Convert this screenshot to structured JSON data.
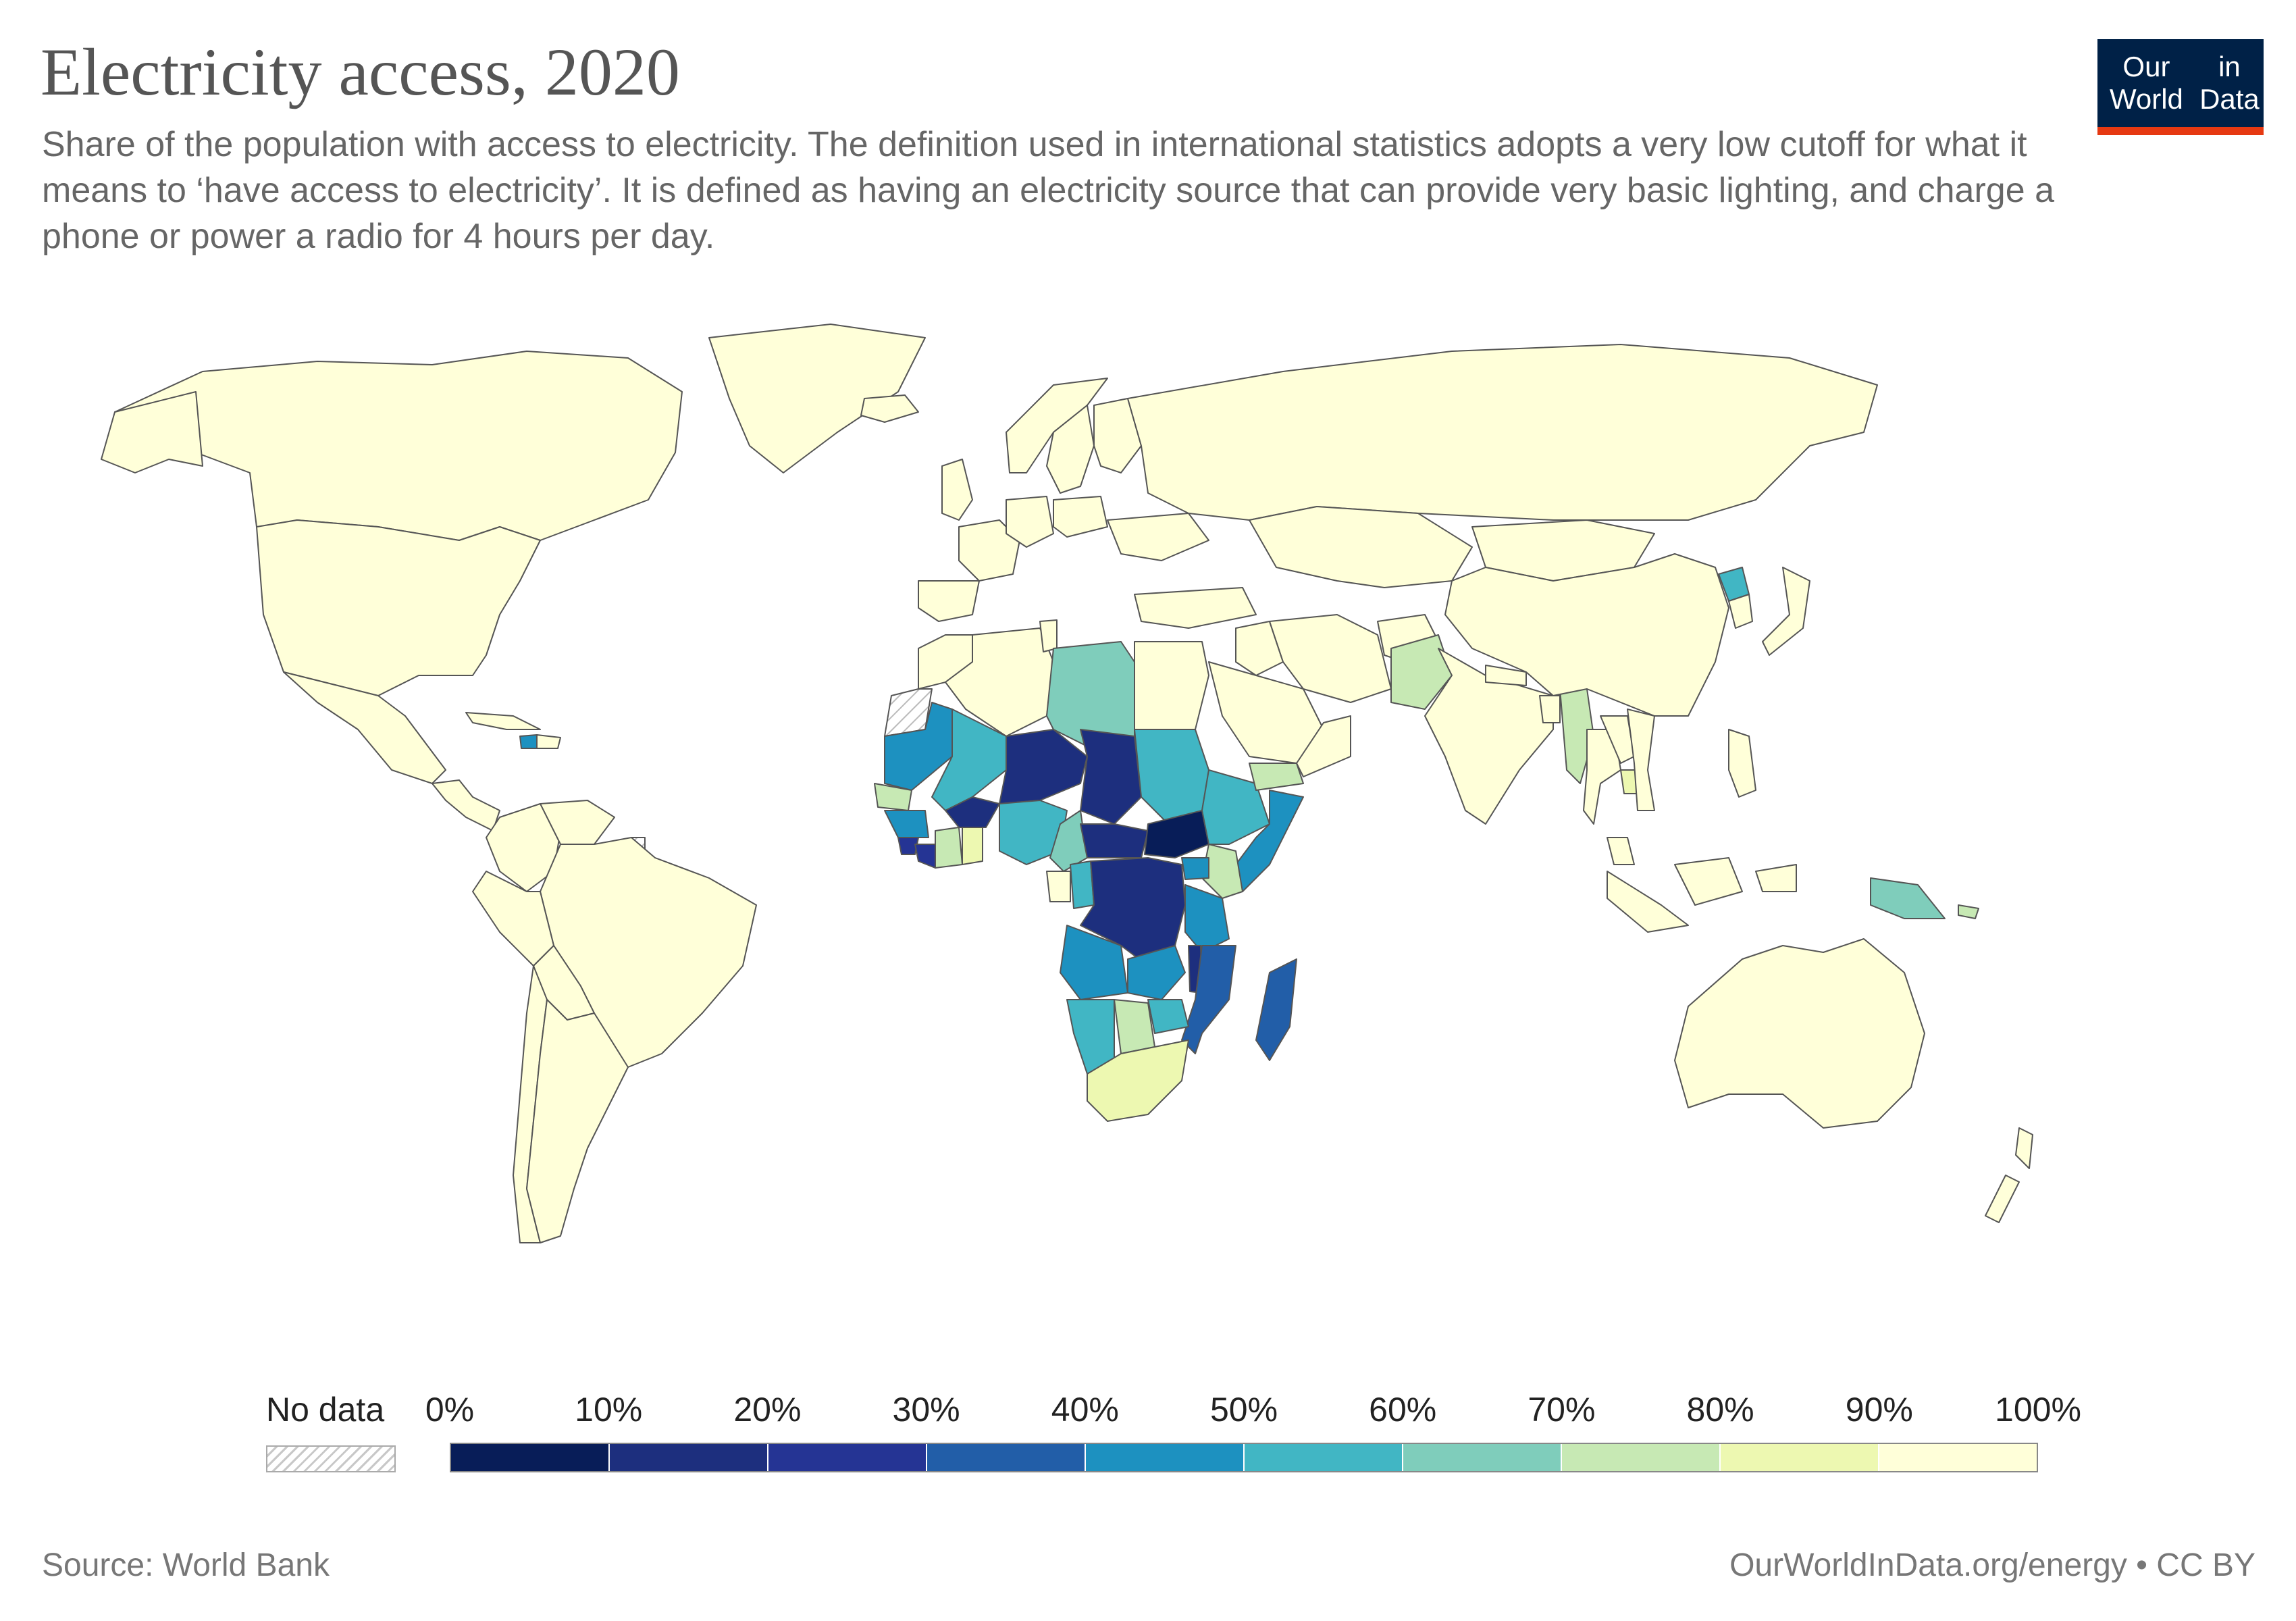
{
  "header": {
    "title": "Electricity access, 2020",
    "subtitle": "Share of the population with access to electricity. The definition used in international statistics adopts a very low cutoff for what it means to ‘have access to electricity’. It is defined as having an electricity source that can provide very basic lighting, and charge a phone or power a radio for 4 hours per day.",
    "logo_line1": "Our World",
    "logo_line2": "in Data"
  },
  "legend": {
    "no_data_label": "No data",
    "ticks": [
      "0%",
      "10%",
      "20%",
      "30%",
      "40%",
      "50%",
      "60%",
      "70%",
      "80%",
      "90%",
      "100%"
    ],
    "bins": [
      "#081d58",
      "#1d2f7e",
      "#253494",
      "#225ea8",
      "#1d91c0",
      "#41b6c4",
      "#7fcdbb",
      "#c7e9b4",
      "#edf8b1",
      "#ffffd9"
    ]
  },
  "footer": {
    "source": "Source: World Bank",
    "credit": "OurWorldInData.org/energy • CC BY"
  },
  "colors": {
    "title": "#555555",
    "text": "#666666",
    "logo_bg": "#002147",
    "logo_accent": "#e63912",
    "border": "#555555",
    "ocean": "#ffffff"
  },
  "map_data": {
    "year": 2020,
    "indicator": "Share of the population with access to electricity (%)",
    "countries": {
      "CAN": 100,
      "USA": 100,
      "MEX": 99,
      "GTM": 97,
      "HND": 94,
      "NIC": 88,
      "HTI": 45,
      "CUB": 100,
      "DOM": 100,
      "COL": 100,
      "VEN": 99,
      "BRA": 100,
      "PER": 96,
      "BOL": 98,
      "ARG": 100,
      "CHL": 100,
      "GRL": 100,
      "ISL": 100,
      "GBR": 100,
      "FRA": 100,
      "ESP": 100,
      "DEU": 100,
      "SWE": 100,
      "NOR": 100,
      "FIN": 100,
      "POL": 100,
      "UKR": 100,
      "RUS": 100,
      "MAR": 100,
      "DZA": 100,
      "TUN": 100,
      "LBY": 67,
      "EGY": 100,
      "MRT": 47,
      "MLI": 51,
      "SEN": 70,
      "GIN": 46,
      "SLE": 26,
      "LBR": 29,
      "CIV": 70,
      "GHA": 85,
      "BFA": 19,
      "NER": 19,
      "NGA": 59,
      "TCD": 11,
      "SDN": 55,
      "SSD": 7,
      "ETH": 54,
      "SOM": 49,
      "KEN": 71,
      "UGA": 45,
      "TZA": 40,
      "CMR": 65,
      "CAF": 15,
      "COD": 19,
      "COG": 50,
      "GAB": 92,
      "AGO": 47,
      "ZMB": 45,
      "MWI": 14,
      "MOZ": 31,
      "ZWE": 53,
      "BWA": 72,
      "NAM": 56,
      "ZAF": 89,
      "MDG": 33,
      "SAU": 100,
      "YEM": 74,
      "OMN": 100,
      "IRN": 100,
      "IRQ": 100,
      "TUR": 100,
      "PAK": 75,
      "AFG": 98,
      "IND": 99,
      "NPL": 90,
      "BGD": 97,
      "MMR": 71,
      "THA": 100,
      "LAO": 100,
      "KHM": 86,
      "VNM": 100,
      "CHN": 100,
      "MNG": 99,
      "PRK": 53,
      "KOR": 100,
      "JPN": 100,
      "KAZ": 100,
      "IDN": 97,
      "PHL": 97,
      "MYS": 100,
      "PNG": 65,
      "SLB": 75,
      "AUS": 100,
      "NZL": 100
    },
    "no_data": [
      "ESH",
      "GUF"
    ]
  }
}
